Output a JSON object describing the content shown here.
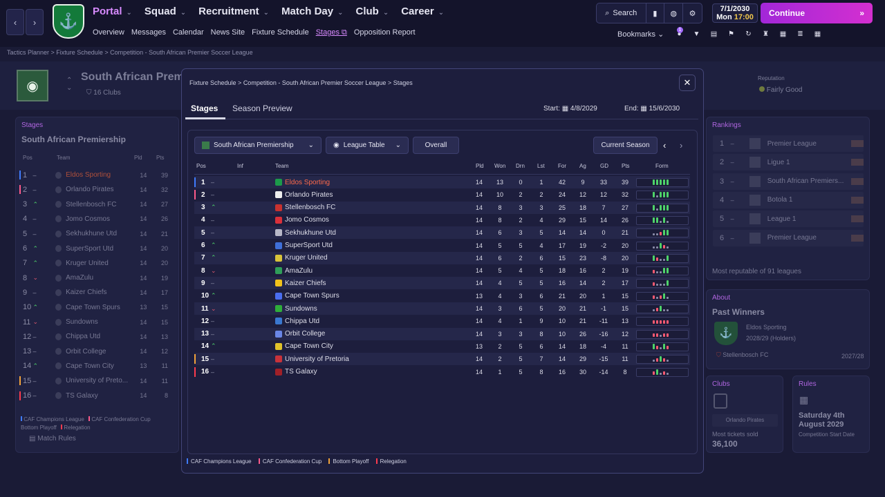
{
  "nav": {
    "main": [
      {
        "label": "Portal",
        "active": true
      },
      {
        "label": "Squad",
        "active": false
      },
      {
        "label": "Recruitment",
        "active": false
      },
      {
        "label": "Match Day",
        "active": false
      },
      {
        "label": "Club",
        "active": false
      },
      {
        "label": "Career",
        "active": false
      }
    ],
    "sub": [
      "Overview",
      "Messages",
      "Calendar",
      "News Site",
      "Fixture Schedule",
      "Stages",
      "Opposition Report"
    ],
    "search_label": "Search",
    "date": "7/1/2030",
    "day": "Mon",
    "time": "17:00",
    "continue_label": "Continue",
    "bookmarks_label": "Bookmarks",
    "notification_count": "1"
  },
  "breadcrumb": "Tactics Planner  >  Fixture Schedule  >  Competition - South African Premier Soccer League",
  "header": {
    "title": "South African Premi",
    "clubs": "16 Clubs",
    "reputation_label": "Reputation",
    "reputation_value": "Fairly Good"
  },
  "left_panel": {
    "label": "Stages",
    "title": "South African Premiership",
    "col_pos": "Pos",
    "col_team": "Team",
    "col_pld": "Pld",
    "col_pts": "Pts",
    "rows": [
      {
        "pos": "1",
        "team": "Eldos Sporting",
        "pld": "14",
        "pts": "39"
      },
      {
        "pos": "2",
        "team": "Orlando Pirates",
        "pld": "14",
        "pts": "32"
      },
      {
        "pos": "3",
        "team": "Stellenbosch FC",
        "pld": "14",
        "pts": "27"
      },
      {
        "pos": "4",
        "team": "Jomo Cosmos",
        "pld": "14",
        "pts": "26"
      },
      {
        "pos": "5",
        "team": "Sekhukhune Utd",
        "pld": "14",
        "pts": "21"
      },
      {
        "pos": "6",
        "team": "SuperSport Utd",
        "pld": "14",
        "pts": "20"
      },
      {
        "pos": "7",
        "team": "Kruger United",
        "pld": "14",
        "pts": "20"
      },
      {
        "pos": "8",
        "team": "AmaZulu",
        "pld": "14",
        "pts": "19"
      },
      {
        "pos": "9",
        "team": "Kaizer Chiefs",
        "pld": "14",
        "pts": "17"
      },
      {
        "pos": "10",
        "team": "Cape Town Spurs",
        "pld": "13",
        "pts": "15"
      },
      {
        "pos": "11",
        "team": "Sundowns",
        "pld": "14",
        "pts": "15"
      },
      {
        "pos": "12",
        "team": "Chippa Utd",
        "pld": "14",
        "pts": "13"
      },
      {
        "pos": "13",
        "team": "Orbit College",
        "pld": "14",
        "pts": "12"
      },
      {
        "pos": "14",
        "team": "Cape Town City",
        "pld": "13",
        "pts": "11"
      },
      {
        "pos": "15",
        "team": "University of Preto...",
        "pld": "14",
        "pts": "11"
      },
      {
        "pos": "16",
        "team": "TS Galaxy",
        "pld": "14",
        "pts": "8"
      }
    ],
    "legend1": "CAF Champions League",
    "legend2": "CAF Confederation Cup",
    "legend3": "Bottom Playoff",
    "legend4": "Relegation",
    "match_rules": "Match Rules"
  },
  "rankings": {
    "label": "Rankings",
    "rows": [
      {
        "pos": "1",
        "name": "Premier League"
      },
      {
        "pos": "2",
        "name": "Ligue 1"
      },
      {
        "pos": "3",
        "name": "South African Premiers..."
      },
      {
        "pos": "4",
        "name": "Botola 1"
      },
      {
        "pos": "5",
        "name": "League 1"
      },
      {
        "pos": "6",
        "name": "Premier League"
      }
    ],
    "footer": "Most reputable of 91 leagues"
  },
  "about": {
    "label": "About",
    "title": "Past Winners",
    "winner": "Eldos Sporting",
    "winner_season": "2028/29 (Holders)",
    "prev_winner": "Stellenbosch FC",
    "prev_season": "2027/28"
  },
  "clubs_card": {
    "label": "Clubs",
    "club": "Orlando Pirates",
    "caption": "Most tickets sold",
    "value": "36,100"
  },
  "rules_card": {
    "label": "Rules",
    "date_line1": "Saturday 4th",
    "date_line2": "August 2029",
    "caption": "Competition Start Date"
  },
  "modal": {
    "crumb1": "Fixture Schedule",
    "crumb2": "Competition - South African Premier Soccer League",
    "crumb3": "Stages",
    "tab_stages": "Stages",
    "tab_preview": "Season Preview",
    "start_label": "Start:",
    "start_date": "4/8/2029",
    "end_label": "End:",
    "end_date": "15/6/2030",
    "dd_competition": "South African Premiership",
    "dd_view": "League Table",
    "btn_overall": "Overall",
    "btn_season": "Current Season",
    "cols": {
      "pos": "Pos",
      "inf": "Inf",
      "team": "Team",
      "pld": "Pld",
      "won": "Won",
      "drn": "Drn",
      "lst": "Lst",
      "for": "For",
      "ag": "Ag",
      "gd": "GD",
      "pts": "Pts",
      "form": "Form"
    },
    "legend": [
      "CAF Champions League",
      "CAF Confederation Cup",
      "Bottom Playoff",
      "Relegation"
    ],
    "stripe_colors": {
      "champions": "#3f7cff",
      "confed": "#ff5a8a",
      "playoff": "#f2a33a",
      "relegation": "#ff3b4e"
    }
  },
  "table": [
    {
      "pos": "1",
      "trend": "same",
      "team": "Eldos Sporting",
      "highlight": true,
      "color": "#1c9a4a",
      "stripe": "champions",
      "pld": "14",
      "won": "13",
      "drn": "0",
      "lst": "1",
      "for": "42",
      "ag": "9",
      "gd": "33",
      "pts": "39",
      "form": "WWWWW"
    },
    {
      "pos": "2",
      "trend": "same",
      "team": "Orlando Pirates",
      "color": "#eeeeee",
      "stripe": "confed",
      "pld": "14",
      "won": "10",
      "drn": "2",
      "lst": "2",
      "for": "24",
      "ag": "12",
      "gd": "12",
      "pts": "32",
      "form": "WDWWW"
    },
    {
      "pos": "3",
      "trend": "up",
      "team": "Stellenbosch FC",
      "color": "#c8322f",
      "pld": "14",
      "won": "8",
      "drn": "3",
      "lst": "3",
      "for": "25",
      "ag": "18",
      "gd": "7",
      "pts": "27",
      "form": "WDWWW"
    },
    {
      "pos": "4",
      "trend": "same",
      "team": "Jomo Cosmos",
      "color": "#d9303a",
      "pld": "14",
      "won": "8",
      "drn": "2",
      "lst": "4",
      "for": "29",
      "ag": "15",
      "gd": "14",
      "pts": "26",
      "form": "WWDWD"
    },
    {
      "pos": "5",
      "trend": "same",
      "team": "Sekhukhune Utd",
      "color": "#b8b8c8",
      "pld": "14",
      "won": "6",
      "drn": "3",
      "lst": "5",
      "for": "14",
      "ag": "14",
      "gd": "0",
      "pts": "21",
      "form": "DDLWW"
    },
    {
      "pos": "6",
      "trend": "up",
      "team": "SuperSport Utd",
      "color": "#3f6fd8",
      "pld": "14",
      "won": "5",
      "drn": "5",
      "lst": "4",
      "for": "17",
      "ag": "19",
      "gd": "-2",
      "pts": "20",
      "form": "DDWLD"
    },
    {
      "pos": "7",
      "trend": "up",
      "team": "Kruger United",
      "color": "#d8c43a",
      "pld": "14",
      "won": "6",
      "drn": "2",
      "lst": "6",
      "for": "15",
      "ag": "23",
      "gd": "-8",
      "pts": "20",
      "form": "WLDDW"
    },
    {
      "pos": "8",
      "trend": "down",
      "team": "AmaZulu",
      "color": "#2f9e59",
      "pld": "14",
      "won": "5",
      "drn": "4",
      "lst": "5",
      "for": "18",
      "ag": "16",
      "gd": "2",
      "pts": "19",
      "form": "LDDWW"
    },
    {
      "pos": "9",
      "trend": "same",
      "team": "Kaizer Chiefs",
      "color": "#f2c21a",
      "pld": "14",
      "won": "4",
      "drn": "5",
      "lst": "5",
      "for": "16",
      "ag": "14",
      "gd": "2",
      "pts": "17",
      "form": "LDDDW"
    },
    {
      "pos": "10",
      "trend": "up",
      "team": "Cape Town Spurs",
      "color": "#4a6ef0",
      "pld": "13",
      "won": "4",
      "drn": "3",
      "lst": "6",
      "for": "21",
      "ag": "20",
      "gd": "1",
      "pts": "15",
      "form": "LDLWD"
    },
    {
      "pos": "11",
      "trend": "down",
      "team": "Sundowns",
      "color": "#2fae3a",
      "pld": "14",
      "won": "3",
      "drn": "6",
      "lst": "5",
      "for": "20",
      "ag": "21",
      "gd": "-1",
      "pts": "15",
      "form": "DLWDD"
    },
    {
      "pos": "12",
      "trend": "same",
      "team": "Chippa Utd",
      "color": "#3a78d0",
      "pld": "14",
      "won": "4",
      "drn": "1",
      "lst": "9",
      "for": "10",
      "ag": "21",
      "gd": "-11",
      "pts": "13",
      "form": "LLLLL"
    },
    {
      "pos": "13",
      "trend": "same",
      "team": "Orbit College",
      "color": "#6a86e6",
      "pld": "14",
      "won": "3",
      "drn": "3",
      "lst": "8",
      "for": "10",
      "ag": "26",
      "gd": "-16",
      "pts": "12",
      "form": "LLDLL"
    },
    {
      "pos": "14",
      "trend": "up",
      "team": "Cape Town City",
      "color": "#e0c22a",
      "pld": "13",
      "won": "2",
      "drn": "5",
      "lst": "6",
      "for": "14",
      "ag": "18",
      "gd": "-4",
      "pts": "11",
      "form": "WLDWL"
    },
    {
      "pos": "15",
      "trend": "same",
      "team": "University of Pretoria",
      "color": "#c8323a",
      "stripe": "playoff",
      "pld": "14",
      "won": "2",
      "drn": "5",
      "lst": "7",
      "for": "14",
      "ag": "29",
      "gd": "-15",
      "pts": "11",
      "form": "DLWLD"
    },
    {
      "pos": "16",
      "trend": "same",
      "team": "TS Galaxy",
      "color": "#a02028",
      "stripe": "relegation",
      "pld": "14",
      "won": "1",
      "drn": "5",
      "lst": "8",
      "for": "16",
      "ag": "30",
      "gd": "-14",
      "pts": "8",
      "form": "LWDLD"
    }
  ]
}
